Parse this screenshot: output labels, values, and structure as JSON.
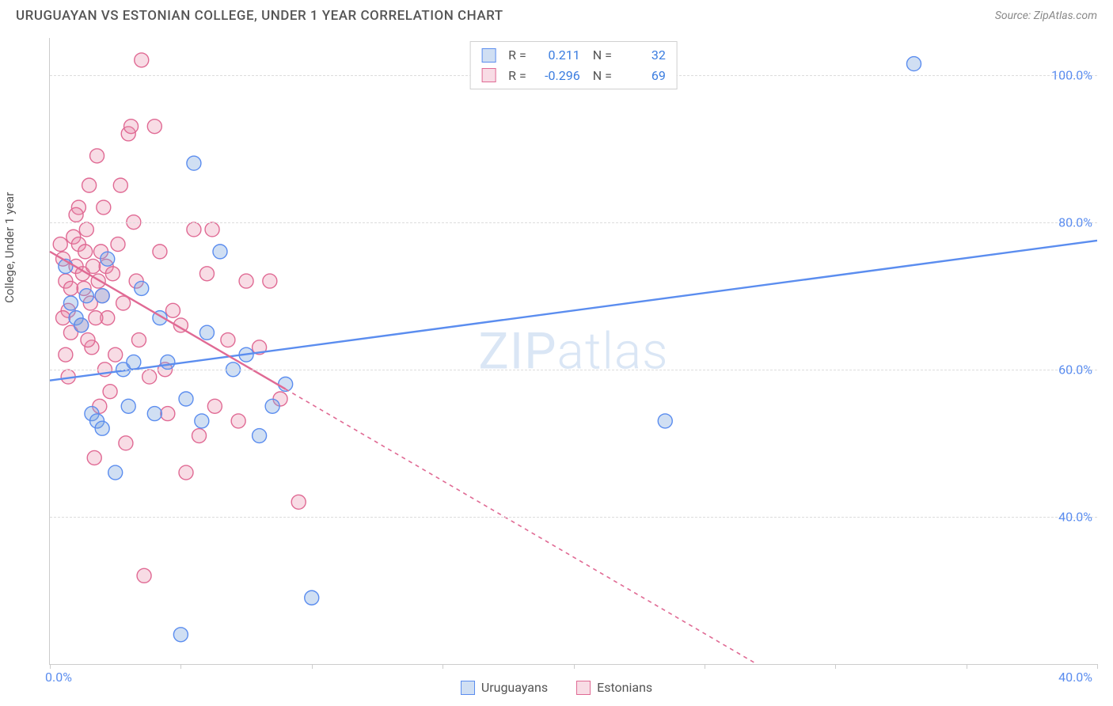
{
  "header": {
    "title": "URUGUAYAN VS ESTONIAN COLLEGE, UNDER 1 YEAR CORRELATION CHART",
    "source_prefix": "Source: ",
    "source_name": "ZipAtlas.com"
  },
  "ylabel": "College, Under 1 year",
  "watermark": {
    "bold": "ZIP",
    "thin": "atlas"
  },
  "chart": {
    "type": "scatter",
    "xlim": [
      0,
      40
    ],
    "ylim": [
      20,
      105
    ],
    "x_ticks": [
      0,
      5,
      10,
      15,
      20,
      25,
      30,
      35,
      40
    ],
    "x_tick_labels": {
      "left": "0.0%",
      "right": "40.0%"
    },
    "y_gridlines": [
      40,
      60,
      80,
      100
    ],
    "y_tick_labels": [
      "40.0%",
      "60.0%",
      "80.0%",
      "100.0%"
    ],
    "background_color": "#ffffff",
    "grid_color": "#dddddd",
    "grid_dash": "4,4",
    "axis_color": "#cccccc",
    "marker_radius": 9,
    "marker_stroke_width": 1.4,
    "series": [
      {
        "name": "Uruguayans",
        "color_fill": "rgba(121,163,220,0.35)",
        "color_stroke": "#5b8def",
        "R": "0.211",
        "N": "32",
        "trend": {
          "x1": 0,
          "y1": 58.5,
          "x2": 40,
          "y2": 77.5,
          "solid_until_x": 40
        },
        "points": [
          [
            0.6,
            74
          ],
          [
            0.8,
            69
          ],
          [
            1.0,
            67
          ],
          [
            1.2,
            66
          ],
          [
            1.4,
            70
          ],
          [
            1.6,
            54
          ],
          [
            1.8,
            53
          ],
          [
            2.0,
            52
          ],
          [
            2.2,
            75
          ],
          [
            2.5,
            46
          ],
          [
            2.8,
            60
          ],
          [
            3.0,
            55
          ],
          [
            3.2,
            61
          ],
          [
            3.5,
            71
          ],
          [
            4.0,
            54
          ],
          [
            4.2,
            67
          ],
          [
            4.5,
            61
          ],
          [
            5.0,
            24
          ],
          [
            5.2,
            56
          ],
          [
            5.5,
            88
          ],
          [
            5.8,
            53
          ],
          [
            6.0,
            65
          ],
          [
            6.5,
            76
          ],
          [
            7.0,
            60
          ],
          [
            7.5,
            62
          ],
          [
            8.0,
            51
          ],
          [
            8.5,
            55
          ],
          [
            9.0,
            58
          ],
          [
            10.0,
            29
          ],
          [
            23.5,
            53
          ],
          [
            33.0,
            101.5
          ],
          [
            2.0,
            70
          ]
        ]
      },
      {
        "name": "Estonians",
        "color_fill": "rgba(232,140,168,0.30)",
        "color_stroke": "#e06a94",
        "R": "-0.296",
        "N": "69",
        "trend": {
          "x1": 0,
          "y1": 76,
          "x2": 27,
          "y2": 20,
          "solid_until_x": 9
        },
        "points": [
          [
            0.4,
            77
          ],
          [
            0.5,
            75
          ],
          [
            0.6,
            72
          ],
          [
            0.7,
            68
          ],
          [
            0.8,
            65
          ],
          [
            0.9,
            78
          ],
          [
            1.0,
            74
          ],
          [
            1.1,
            82
          ],
          [
            1.2,
            66
          ],
          [
            1.3,
            71
          ],
          [
            1.4,
            79
          ],
          [
            1.5,
            85
          ],
          [
            1.6,
            63
          ],
          [
            1.7,
            48
          ],
          [
            1.8,
            89
          ],
          [
            1.9,
            55
          ],
          [
            2.0,
            70
          ],
          [
            2.05,
            82
          ],
          [
            2.1,
            60
          ],
          [
            2.15,
            74
          ],
          [
            2.2,
            67
          ],
          [
            2.3,
            57
          ],
          [
            2.4,
            73
          ],
          [
            2.5,
            62
          ],
          [
            2.6,
            77
          ],
          [
            2.7,
            85
          ],
          [
            2.8,
            69
          ],
          [
            2.9,
            50
          ],
          [
            3.0,
            92
          ],
          [
            3.1,
            93
          ],
          [
            3.2,
            80
          ],
          [
            3.3,
            72
          ],
          [
            3.4,
            64
          ],
          [
            3.5,
            102
          ],
          [
            3.6,
            32
          ],
          [
            3.8,
            59
          ],
          [
            4.0,
            93
          ],
          [
            4.2,
            76
          ],
          [
            4.4,
            60
          ],
          [
            4.5,
            54
          ],
          [
            4.7,
            68
          ],
          [
            5.0,
            66
          ],
          [
            5.2,
            46
          ],
          [
            5.5,
            79
          ],
          [
            5.7,
            51
          ],
          [
            6.0,
            73
          ],
          [
            6.3,
            55
          ],
          [
            6.2,
            79
          ],
          [
            6.8,
            64
          ],
          [
            7.2,
            53
          ],
          [
            7.5,
            72
          ],
          [
            8.0,
            63
          ],
          [
            8.4,
            72
          ],
          [
            8.8,
            56
          ],
          [
            9.5,
            42
          ],
          [
            1.0,
            81
          ],
          [
            1.1,
            77
          ],
          [
            0.5,
            67
          ],
          [
            0.6,
            62
          ],
          [
            0.7,
            59
          ],
          [
            0.8,
            71
          ],
          [
            1.25,
            73
          ],
          [
            1.35,
            76
          ],
          [
            1.45,
            64
          ],
          [
            1.55,
            69
          ],
          [
            1.65,
            74
          ],
          [
            1.75,
            67
          ],
          [
            1.85,
            72
          ],
          [
            1.95,
            76
          ]
        ]
      }
    ]
  },
  "legend_bottom": {
    "items": [
      {
        "label": "Uruguayans",
        "swatch": "blue"
      },
      {
        "label": "Estonians",
        "swatch": "pink"
      }
    ]
  }
}
